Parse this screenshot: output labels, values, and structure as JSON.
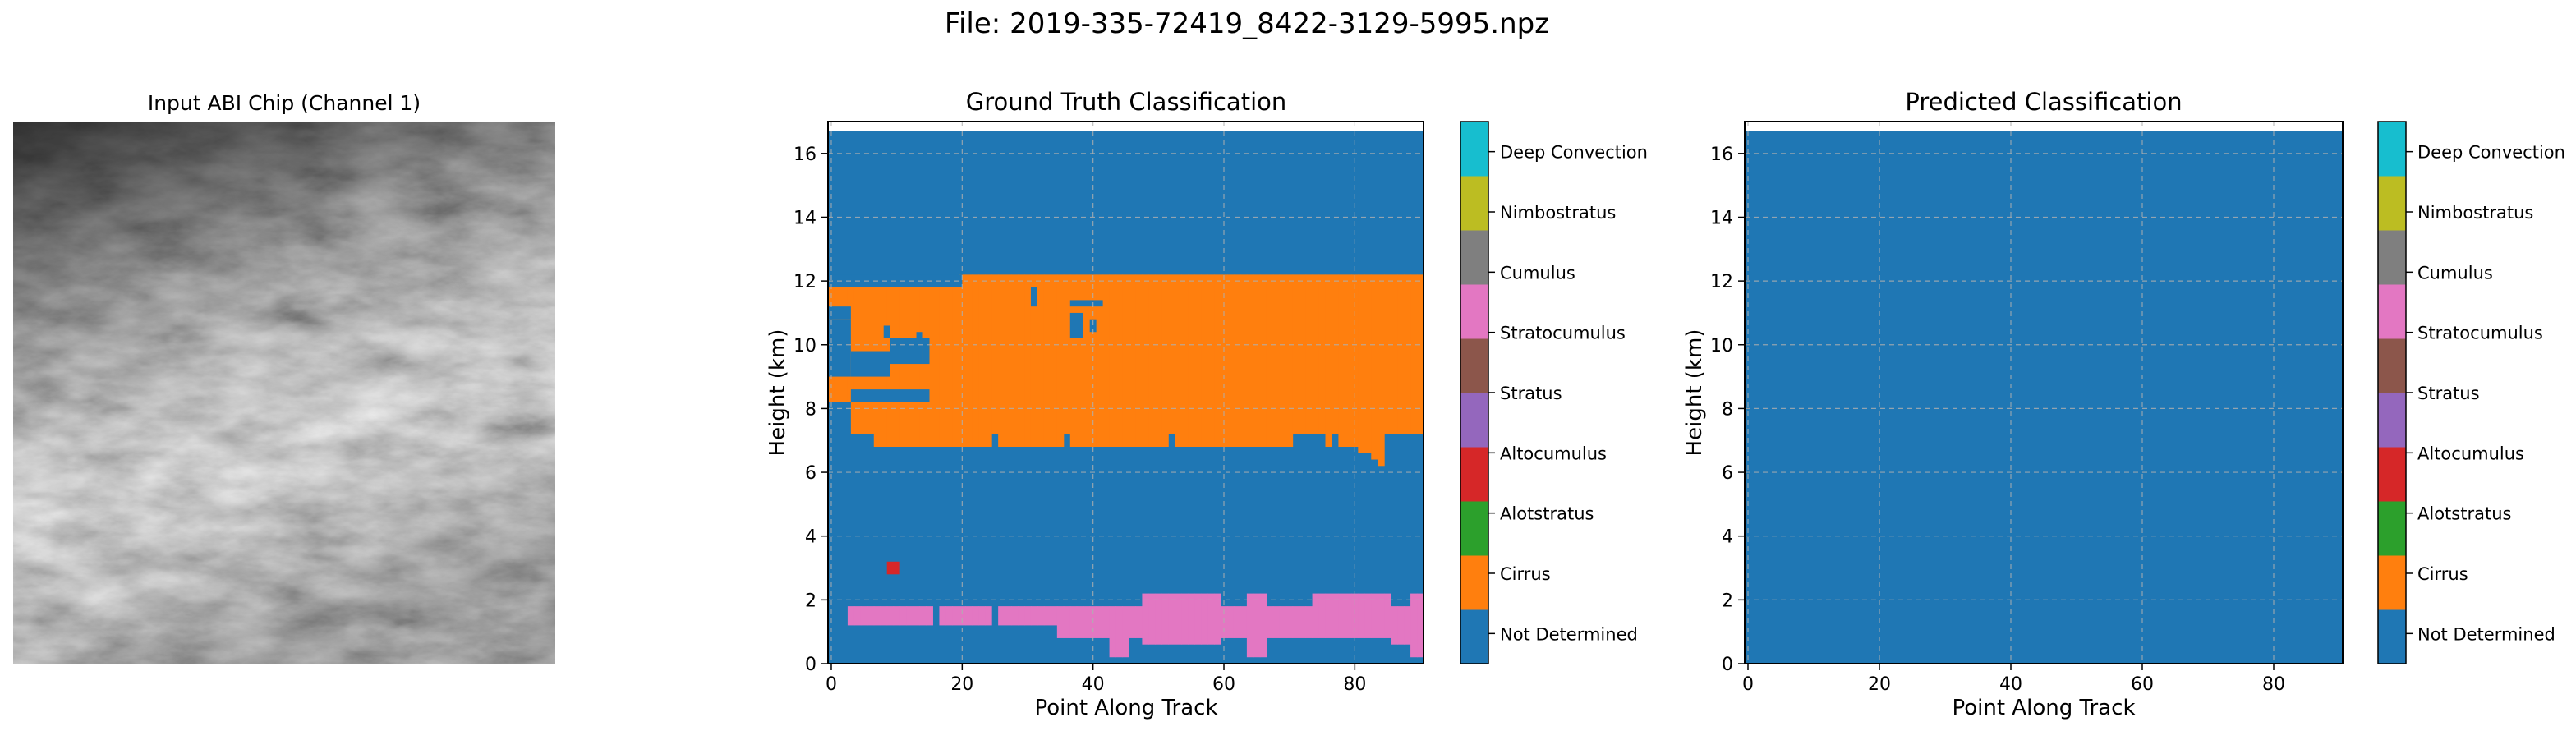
{
  "figure": {
    "suptitle": "File: 2019-335-72419_8422-3129-5995.npz"
  },
  "colors": {
    "not_determined": "#1f77b4",
    "cirrus": "#ff7f0e",
    "altostratus": "#2ca02c",
    "altocumulus": "#d62728",
    "stratus": "#9467bd",
    "stratocumulus": "#8c564b",
    "cumulus": "#e377c2",
    "nimbostratus": "#7f7f7f",
    "deep_convection": "#bcbd22",
    "extra": "#17becf"
  },
  "chart_data": [
    {
      "type": "image",
      "title": "Input ABI Chip (Channel 1)",
      "colormap": "gray"
    },
    {
      "type": "heatmap",
      "title": "Ground Truth Classification",
      "xlabel": "Point Along Track",
      "ylabel": "Height (km)",
      "xlim": [
        -0.5,
        90.5
      ],
      "ylim": [
        0,
        17
      ],
      "xticks": [
        0,
        20,
        40,
        60,
        80
      ],
      "yticks": [
        0,
        2,
        4,
        6,
        8,
        10,
        12,
        14,
        16
      ],
      "grid": true,
      "data_top_km": 16.7,
      "background_class": "Not Determined",
      "regions": [
        {
          "class": "Cirrus",
          "x": [
            0,
            90
          ],
          "y": [
            7.2,
            12.2
          ]
        },
        {
          "class": "Cirrus",
          "x": [
            0,
            20
          ],
          "y": [
            11.8,
            12.2
          ],
          "note_class_override": "Not Determined"
        },
        {
          "class": "Stratocumulus",
          "x": [
            3,
            90
          ],
          "y": [
            1.2,
            1.8
          ]
        },
        {
          "class": "Stratocumulus",
          "x": [
            35,
            90
          ],
          "y": [
            0.8,
            2.2
          ]
        },
        {
          "class": "Altostratus",
          "x": [
            9,
            11
          ],
          "y": [
            2.8,
            3.2
          ]
        }
      ],
      "colorbar_labels": [
        "Deep Convection",
        "Nimbostratus",
        "Cumulus",
        "Stratocumulus",
        "Stratus",
        "Altocumulus",
        "Alotstratus",
        "Cirrus",
        "Not Determined"
      ]
    },
    {
      "type": "heatmap",
      "title": "Predicted Classification",
      "xlabel": "Point Along Track",
      "ylabel": "Height (km)",
      "xlim": [
        -0.5,
        90.5
      ],
      "ylim": [
        0,
        17
      ],
      "xticks": [
        0,
        20,
        40,
        60,
        80
      ],
      "yticks": [
        0,
        2,
        4,
        6,
        8,
        10,
        12,
        14,
        16
      ],
      "grid": true,
      "data_top_km": 16.7,
      "background_class": "Not Determined",
      "regions": [],
      "colorbar_labels": [
        "Deep Convection",
        "Nimbostratus",
        "Cumulus",
        "Stratocumulus",
        "Stratus",
        "Altocumulus",
        "Alotstratus",
        "Cirrus",
        "Not Determined"
      ]
    }
  ]
}
